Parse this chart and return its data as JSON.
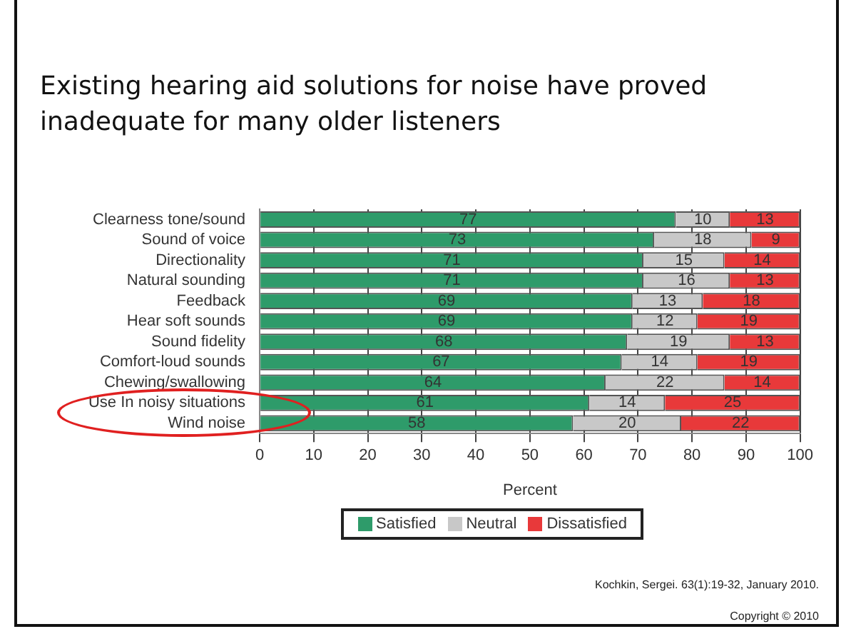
{
  "chart_data": {
    "type": "bar",
    "orientation": "horizontal",
    "stacked": true,
    "title": "Existing hearing aid solutions for noise have proved inadequate for many older listeners",
    "xlabel": "Percent",
    "categories": [
      "Clearness tone/sound",
      "Sound of voice",
      "Directionality",
      "Natural sounding",
      "Feedback",
      "Hear soft sounds",
      "Sound fidelity",
      "Comfort-loud sounds",
      "Chewing/swallowing",
      "Use In noisy situations",
      "Wind noise"
    ],
    "series": [
      {
        "name": "Satisfied",
        "color": "#2e9b6a",
        "values": [
          77,
          73,
          71,
          71,
          69,
          69,
          68,
          67,
          64,
          61,
          58
        ]
      },
      {
        "name": "Neutral",
        "color": "#c8c8c8",
        "values": [
          10,
          18,
          15,
          16,
          13,
          12,
          19,
          14,
          22,
          14,
          20
        ]
      },
      {
        "name": "Dissatisfied",
        "color": "#e8393a",
        "values": [
          13,
          9,
          14,
          13,
          18,
          19,
          13,
          19,
          14,
          25,
          22
        ]
      }
    ],
    "xlim": [
      0,
      100
    ],
    "xticks": [
      0,
      10,
      20,
      30,
      40,
      50,
      60,
      70,
      80,
      90,
      100
    ],
    "grid": "x",
    "legend": "bottom",
    "data_labels": true,
    "annotations": [
      "Kochkin, Sergei. 63(1):19-32, January 2010.",
      "Copyright © 2010"
    ]
  }
}
